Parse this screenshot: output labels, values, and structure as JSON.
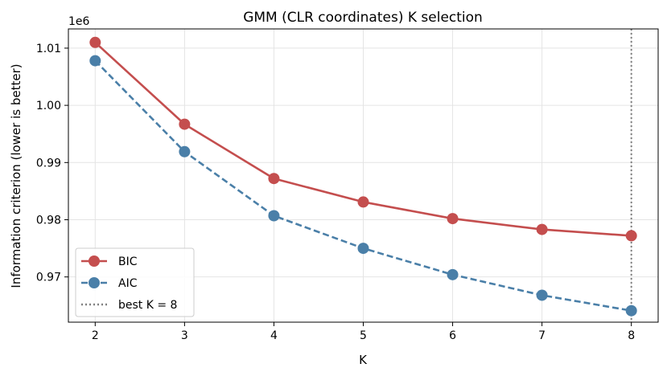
{
  "chart_data": {
    "type": "line",
    "title": "GMM (CLR coordinates) K selection",
    "xlabel": "K",
    "ylabel": "Information criterion (lower is better)",
    "y_offset_label": "1e6",
    "x": [
      2,
      3,
      4,
      5,
      6,
      7,
      8
    ],
    "x_ticks": [
      "2",
      "3",
      "4",
      "5",
      "6",
      "7",
      "8"
    ],
    "y_ticks": [
      0.97,
      0.98,
      0.99,
      1.0,
      1.01
    ],
    "y_tick_labels": [
      "0.97",
      "0.98",
      "0.99",
      "1.00",
      "1.01"
    ],
    "xlim": [
      1.7,
      8.3
    ],
    "ylim": [
      0.96209,
      1.01336
    ],
    "grid": true,
    "legend_position": "lower-left",
    "series": [
      {
        "name": "BIC",
        "color": "#c44e4e",
        "line_style": "solid",
        "values": [
          1.011,
          0.9967,
          0.9872,
          0.9831,
          0.9802,
          0.9783,
          0.9772
        ]
      },
      {
        "name": "AIC",
        "color": "#4a7fa8",
        "line_style": "dashed",
        "values": [
          1.0078,
          0.9919,
          0.9807,
          0.975,
          0.9704,
          0.9668,
          0.9641
        ]
      }
    ],
    "vline": {
      "x": 8,
      "label": "best K = 8",
      "color": "#808080",
      "line_style": "dotted"
    }
  }
}
